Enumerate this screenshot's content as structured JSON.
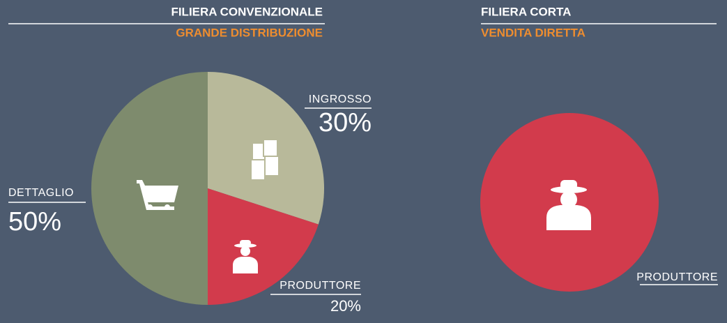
{
  "chart_data": [
    {
      "type": "pie",
      "title": "FILIERA CONVENZIONALE",
      "subtitle": "GRANDE DISTRIBUZIONE",
      "categories": [
        "INGROSSO",
        "PRODUTTORE",
        "DETTAGLIO"
      ],
      "values": [
        30,
        20,
        50
      ],
      "value_labels": [
        "30%",
        "20%",
        "50%"
      ],
      "colors": [
        "#b8b99a",
        "#d23b4c",
        "#7e8b6d"
      ]
    },
    {
      "type": "pie",
      "title": "FILIERA CORTA",
      "subtitle": "VENDITA DIRETTA",
      "categories": [
        "PRODUTTORE"
      ],
      "values": [
        100
      ],
      "colors": [
        "#d23b4c"
      ]
    }
  ]
}
